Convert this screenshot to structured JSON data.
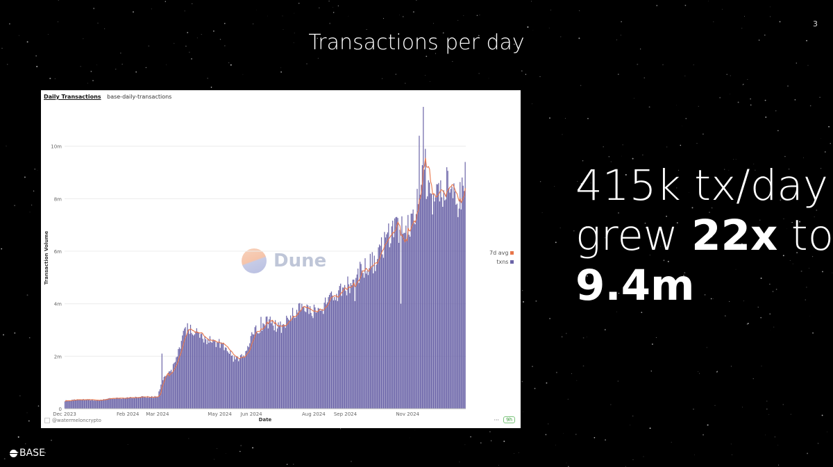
{
  "slide": {
    "title": "Transactions per day",
    "page_number": "3",
    "headline": {
      "line1": "415k tx/day",
      "line2_pre": "grew ",
      "line2_bold": "22x",
      "line2_post": " to",
      "line3_bold": "9.4m"
    },
    "brand": "BASE"
  },
  "card": {
    "query_title": "Daily Transactions",
    "query_slug": "base-daily-transactions",
    "watermark": "Dune",
    "footer_user": "@watermeloncrypto",
    "footer_menu": "···",
    "footer_age": "9h"
  },
  "colors": {
    "bar": "#6b64a8",
    "avg_line": "#e8764a",
    "background": "#000000"
  },
  "chart_data": {
    "type": "bar",
    "xlabel": "Date",
    "ylabel": "Transaction Volume",
    "ylim": [
      0,
      11500000
    ],
    "y_ticks": [
      {
        "value": 0,
        "label": "0"
      },
      {
        "value": 2000000,
        "label": "2m"
      },
      {
        "value": 4000000,
        "label": "4m"
      },
      {
        "value": 6000000,
        "label": "6m"
      },
      {
        "value": 8000000,
        "label": "8m"
      },
      {
        "value": 10000000,
        "label": "10m"
      }
    ],
    "x_ticks": [
      {
        "date": "2023-12-01",
        "label": "Dec 2023"
      },
      {
        "date": "2024-02-01",
        "label": "Feb 2024"
      },
      {
        "date": "2024-03-01",
        "label": "Mar 2024"
      },
      {
        "date": "2024-05-01",
        "label": "May 2024"
      },
      {
        "date": "2024-06-01",
        "label": "Jun 2024"
      },
      {
        "date": "2024-08-01",
        "label": "Aug 2024"
      },
      {
        "date": "2024-09-01",
        "label": "Sep 2024"
      },
      {
        "date": "2024-11-01",
        "label": "Nov 2024"
      }
    ],
    "grid": true,
    "legend_position": "right",
    "series": [
      {
        "name": "7d avg",
        "type": "line",
        "color": "#e8764a"
      },
      {
        "name": "txns",
        "type": "bar",
        "color": "#6b64a8"
      }
    ],
    "x_start": "2023-12-01",
    "x_end": "2024-12-27",
    "daily_txns_keypoints": [
      [
        "2023-12-01",
        300000
      ],
      [
        "2023-12-15",
        360000
      ],
      [
        "2024-01-01",
        330000
      ],
      [
        "2024-01-15",
        380000
      ],
      [
        "2024-02-01",
        420000
      ],
      [
        "2024-02-15",
        450000
      ],
      [
        "2024-03-01",
        450000
      ],
      [
        "2024-03-05",
        1100000
      ],
      [
        "2024-03-15",
        1500000
      ],
      [
        "2024-03-25",
        2700000
      ],
      [
        "2024-03-30",
        3100000
      ],
      [
        "2024-04-05",
        2950000
      ],
      [
        "2024-04-20",
        2600000
      ],
      [
        "2024-05-01",
        2450000
      ],
      [
        "2024-05-15",
        1900000
      ],
      [
        "2024-05-25",
        2000000
      ],
      [
        "2024-06-01",
        2900000
      ],
      [
        "2024-06-15",
        3300000
      ],
      [
        "2024-07-01",
        3100000
      ],
      [
        "2024-07-10",
        3600000
      ],
      [
        "2024-07-20",
        3800000
      ],
      [
        "2024-07-30",
        3700000
      ],
      [
        "2024-08-10",
        3900000
      ],
      [
        "2024-08-20",
        4200000
      ],
      [
        "2024-09-01",
        4600000
      ],
      [
        "2024-09-15",
        5200000
      ],
      [
        "2024-10-01",
        5700000
      ],
      [
        "2024-10-15",
        6700000
      ],
      [
        "2024-11-01",
        6900000
      ],
      [
        "2024-11-10",
        7800000
      ],
      [
        "2024-11-15",
        8700000
      ],
      [
        "2024-11-22",
        8000000
      ],
      [
        "2024-12-01",
        8200000
      ],
      [
        "2024-12-10",
        8400000
      ],
      [
        "2024-12-20",
        8000000
      ],
      [
        "2024-12-27",
        8400000
      ]
    ],
    "daily_txns_spikes": [
      [
        "2024-03-05",
        2100000
      ],
      [
        "2024-04-02",
        3200000
      ],
      [
        "2024-06-10",
        3500000
      ],
      [
        "2024-07-20",
        4000000
      ],
      [
        "2024-09-25",
        5900000
      ],
      [
        "2024-10-20",
        7300000
      ],
      [
        "2024-11-12",
        10400000
      ],
      [
        "2024-11-16",
        11500000
      ],
      [
        "2024-11-18",
        9900000
      ],
      [
        "2024-12-09",
        9200000
      ],
      [
        "2024-12-27",
        9400000
      ]
    ],
    "daily_txns_dips": [
      [
        "2024-09-10",
        4100000
      ],
      [
        "2024-10-25",
        4000000
      ],
      [
        "2024-11-25",
        7400000
      ],
      [
        "2024-12-20",
        7300000
      ]
    ]
  }
}
